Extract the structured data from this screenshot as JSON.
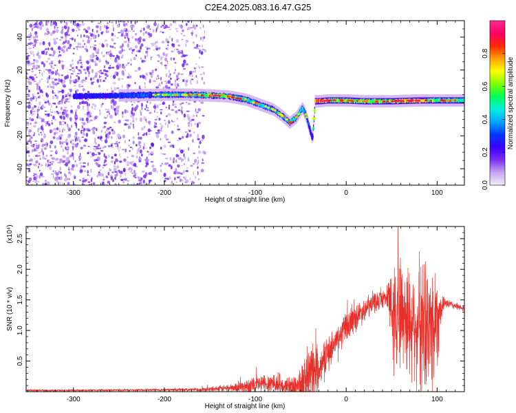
{
  "title": "C2E4.2025.083.16.47.G25",
  "chart_data": [
    {
      "type": "heatmap",
      "xlabel": "Height of straight line (km)",
      "ylabel": "Frequency (Hz)",
      "xlim": [
        -352,
        130
      ],
      "ylim": [
        -50,
        50
      ],
      "xticks": [
        -300,
        -200,
        -100,
        0,
        100
      ],
      "yticks": [
        -40,
        -20,
        0,
        20,
        40
      ],
      "colorbar": {
        "label": "Normalized spectral amplitude",
        "range": [
          0,
          1
        ],
        "ticks": [
          0.0,
          0.2,
          0.4,
          0.6,
          0.8
        ],
        "colors": [
          "#f3ecfb",
          "#c7a6ef",
          "#7b2ff0",
          "#3b00ff",
          "#0038ff",
          "#00a6ff",
          "#00f0e0",
          "#00ff55",
          "#7cff00",
          "#ffff00",
          "#ffa000",
          "#ff2a00",
          "#ff0066",
          "#ff2d8d"
        ]
      },
      "noise_region": {
        "x": [
          -352,
          -155
        ],
        "ylim": [
          -50,
          50
        ]
      },
      "ridge": {
        "x": [
          -352,
          -300,
          -250,
          -200,
          -170,
          -150,
          -130,
          -110,
          -90,
          -80,
          -70,
          -62,
          -55,
          -48,
          -44,
          -40,
          -37,
          -34,
          -30,
          -20,
          0,
          20,
          50,
          80,
          100,
          130
        ],
        "y": [
          4,
          4,
          4.5,
          5,
          5,
          4.5,
          4,
          2,
          -2,
          -4,
          -8,
          -12,
          -9,
          -3,
          -8,
          -16,
          -22,
          1,
          1,
          1.5,
          1.5,
          1,
          1,
          1.5,
          1.5,
          1.5
        ],
        "amplitude": [
          0.15,
          0.25,
          0.3,
          0.4,
          0.5,
          0.6,
          0.65,
          0.5,
          0.45,
          0.4,
          0.45,
          0.5,
          0.5,
          0.45,
          0.4,
          0.3,
          0.25,
          0.8,
          0.85,
          0.7,
          0.6,
          0.6,
          0.7,
          0.75,
          0.6,
          0.55
        ]
      }
    },
    {
      "type": "line",
      "xlabel": "Height of straight line (km)",
      "ylabel": "SNR (10 * v/v)",
      "multiplier": "(x10⁴)",
      "xlim": [
        -352,
        130
      ],
      "ylim": [
        0,
        27000
      ],
      "xticks": [
        -300,
        -200,
        -100,
        0,
        100
      ],
      "yticks": [
        5000,
        10000,
        15000,
        20000,
        25000
      ],
      "ytick_labels": [
        "0.5",
        "1.0",
        "1.5",
        "2.0",
        "2.5"
      ],
      "series": [
        {
          "color": "#e8302a",
          "envelope_x": [
            -352,
            -300,
            -200,
            -160,
            -140,
            -120,
            -110,
            -100,
            -90,
            -80,
            -75,
            -70,
            -60,
            -50,
            -45,
            -40,
            -35,
            -30,
            -25,
            -20,
            -10,
            0,
            10,
            20,
            30,
            40,
            45,
            50,
            55,
            60,
            65,
            70,
            75,
            80,
            85,
            90,
            95,
            100,
            105,
            110,
            120,
            130
          ],
          "baseline": [
            200,
            200,
            300,
            350,
            500,
            700,
            900,
            1100,
            1300,
            1500,
            1000,
            800,
            900,
            1200,
            1800,
            2500,
            3200,
            4000,
            5000,
            6500,
            8500,
            10500,
            12000,
            13500,
            14500,
            15200,
            15500,
            14000,
            13500,
            13000,
            12500,
            11500,
            12000,
            11500,
            11000,
            10000,
            11000,
            12000,
            14000,
            14500,
            14000,
            13500
          ],
          "amplitude": [
            150,
            150,
            200,
            300,
            500,
            800,
            1200,
            1500,
            1800,
            2000,
            1500,
            1300,
            1800,
            3000,
            4500,
            5500,
            5000,
            3000,
            2500,
            2500,
            2500,
            2500,
            2200,
            2000,
            1800,
            1500,
            1500,
            7000,
            9000,
            10000,
            9000,
            10000,
            9000,
            10000,
            11000,
            10000,
            11000,
            9000,
            1500,
            800,
            600,
            400
          ]
        }
      ]
    }
  ]
}
